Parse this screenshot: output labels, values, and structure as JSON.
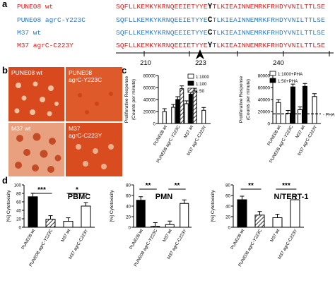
{
  "panels": {
    "a": "a",
    "b": "b",
    "c": "c",
    "d": "d"
  },
  "sequences": [
    {
      "name": "PUNE08 wt",
      "color": "#d62020",
      "pre": "SQFLLKEMKYKRNQEEIETYYE",
      "key": "Y",
      "post": "TLKIEAINNEMRKFRHDYVNILTTLSE"
    },
    {
      "name": "PUNE08 agrC-Y223C",
      "color": "#2a78c8",
      "pre": "SQFLLKEMKYKRNQEEIETYYE",
      "key": "C",
      "post": "TLKIEAINNEMRKFRHDYVNILTTLSE"
    },
    {
      "name": "M37 wt",
      "color": "#2a78c8",
      "pre": "SQFLLKEMKYKRNQEEIETYYE",
      "key": "C",
      "post": "TLKIEAINNEMRKFRHDYVNILTTLSE"
    },
    {
      "name": "M37 agrC-C223Y",
      "color": "#d62020",
      "pre": "SQFLLKEMKYKRNQEEIETYYE",
      "key": "Y",
      "post": "TLKIEAINNEMRKFRHDYVNILTTLSE"
    }
  ],
  "ruler": {
    "positions": [
      "210",
      "223",
      "240"
    ]
  },
  "petri": [
    {
      "label": "PUNE08 wt"
    },
    {
      "label": "PUNE08\nagrC-Y223C"
    },
    {
      "label": "M37 wt"
    },
    {
      "label": "M37\nagrC-C223Y"
    }
  ],
  "chart_data": [
    {
      "id": "c-left",
      "type": "bar",
      "ylabel": "Proliferative Response\n(Counts per minute)",
      "ylim": [
        0,
        80000
      ],
      "yticks": [
        "0",
        "20000",
        "40000",
        "60000",
        "80000"
      ],
      "categories": [
        "PUNE08 wt",
        "PUNE08 agrC-Y223C",
        "M37 wt",
        "M37 agrC-C223Y"
      ],
      "series": [
        {
          "name": "1:1000",
          "fill": "white",
          "values": [
            20000,
            27000,
            33000,
            22000
          ]
        },
        {
          "name": "1:100",
          "fill": "black",
          "values": [
            null,
            40000,
            49000,
            null
          ]
        },
        {
          "name": "1:50",
          "fill": "hatch",
          "values": [
            null,
            58000,
            54000,
            null
          ]
        }
      ]
    },
    {
      "id": "c-right",
      "type": "bar",
      "ylabel": "Proliferative Response\n(Counts per minute)",
      "ylim": [
        0,
        80000
      ],
      "yticks": [
        "0",
        "20000",
        "40000",
        "60000",
        "80000"
      ],
      "categories": [
        "PUNE08 wt",
        "PUNE08 agrC-Y223C",
        "M37 wt",
        "M37 agrC-C223Y"
      ],
      "series": [
        {
          "name": "1:1000+PHA",
          "fill": "white",
          "values": [
            35000,
            17000,
            23000,
            45000
          ]
        },
        {
          "name": "1:50+PHA",
          "fill": "black",
          "values": [
            null,
            61000,
            62000,
            null
          ]
        }
      ],
      "reference_line": {
        "label": "PHA",
        "value": 16000
      }
    },
    {
      "id": "d-pbmc",
      "type": "bar",
      "title": "PBMC",
      "ylabel": "[%] Cytotoxicity",
      "ylim": [
        0,
        100
      ],
      "yticks": [
        "0",
        "20",
        "40",
        "60",
        "80",
        "100"
      ],
      "categories": [
        "PUNE08 wt",
        "PUNE08 agrC-Y223C",
        "M37 wt",
        "M37 agrC-C223Y"
      ],
      "values": [
        72,
        19,
        14,
        50
      ],
      "fills": [
        "black",
        "hatch",
        "white",
        "white"
      ],
      "significance": [
        {
          "label": "***",
          "from": 0,
          "to": 1
        },
        {
          "label": "*",
          "from": 2,
          "to": 3
        }
      ]
    },
    {
      "id": "d-pmn",
      "type": "bar",
      "title": "PMN",
      "ylabel": "[%] Cytotoxicity",
      "ylim": [
        0,
        80
      ],
      "yticks": [
        "0",
        "20",
        "40",
        "60",
        "80"
      ],
      "categories": [
        "PUNE08 wt",
        "PUNE08 agrC-Y223C",
        "M37 wt",
        "M37 agrC-C223Y"
      ],
      "values": [
        51,
        2,
        5,
        45
      ],
      "fills": [
        "black",
        "hatch",
        "white",
        "white"
      ],
      "significance": [
        {
          "label": "**",
          "from": 0,
          "to": 1
        },
        {
          "label": "**",
          "from": 2,
          "to": 3
        }
      ]
    },
    {
      "id": "d-ntert",
      "type": "bar",
      "title": "N/TERT-1",
      "ylabel": "[%] Cytotoxicity",
      "ylim": [
        0,
        80
      ],
      "yticks": [
        "0",
        "20",
        "40",
        "60",
        "80"
      ],
      "categories": [
        "PUNE08 wt",
        "PUNE08 agrC-Y223C",
        "M37 wt",
        "M37 agrC-C223Y"
      ],
      "values": [
        52,
        23,
        18,
        52
      ],
      "fills": [
        "black",
        "hatch",
        "white",
        "white"
      ],
      "significance": [
        {
          "label": "**",
          "from": 0,
          "to": 1
        },
        {
          "label": "***",
          "from": 2,
          "to": 3
        }
      ]
    }
  ]
}
